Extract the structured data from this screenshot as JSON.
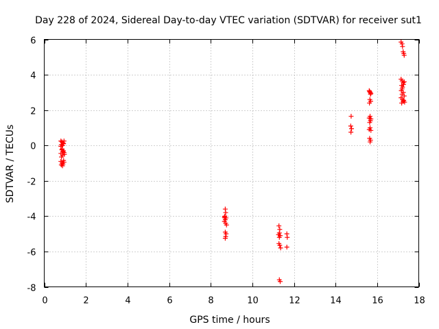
{
  "chart_data": {
    "type": "scatter",
    "title": "Day 228 of 2024, Sidereal Day-to-day VTEC variation (SDTVAR) for receiver sut1",
    "xlabel": "GPS time / hours",
    "ylabel": "SDTVAR / TECUs",
    "xlim": [
      0,
      18
    ],
    "ylim": [
      -8,
      6
    ],
    "xticks": [
      0,
      2,
      4,
      6,
      8,
      10,
      12,
      14,
      16,
      18
    ],
    "yticks": [
      -8,
      -6,
      -4,
      -2,
      0,
      2,
      4,
      6
    ],
    "xtick_labels": [
      "0",
      "2",
      "4",
      "6",
      "8",
      "10",
      "12",
      "14",
      "16",
      "18"
    ],
    "ytick_labels": [
      "-8",
      "-6",
      "-4",
      "-2",
      "0",
      "2",
      "4",
      "6"
    ],
    "grid": true,
    "marker": "+",
    "marker_color": "#ff0000",
    "series": [
      {
        "name": "SDTVAR",
        "points": [
          [
            0.8,
            0.25
          ],
          [
            0.85,
            0.2
          ],
          [
            0.9,
            0.15
          ],
          [
            0.95,
            0.25
          ],
          [
            0.82,
            0.05
          ],
          [
            0.88,
            0.0
          ],
          [
            0.93,
            0.1
          ],
          [
            0.8,
            -0.05
          ],
          [
            0.85,
            -0.25
          ],
          [
            0.9,
            -0.35
          ],
          [
            0.95,
            -0.4
          ],
          [
            0.8,
            -0.45
          ],
          [
            0.88,
            -0.55
          ],
          [
            0.92,
            -0.3
          ],
          [
            0.97,
            -0.5
          ],
          [
            0.83,
            -0.65
          ],
          [
            0.8,
            -0.9
          ],
          [
            0.85,
            -1.0
          ],
          [
            0.9,
            -1.05
          ],
          [
            0.95,
            -0.95
          ],
          [
            0.82,
            -1.1
          ],
          [
            0.88,
            -1.15
          ],
          [
            0.93,
            -0.85
          ],
          [
            0.86,
            -0.2
          ],
          [
            8.7,
            -3.6
          ],
          [
            8.72,
            -3.8
          ],
          [
            8.68,
            -4.0
          ],
          [
            8.74,
            -4.1
          ],
          [
            8.7,
            -4.2
          ],
          [
            8.66,
            -4.3
          ],
          [
            8.72,
            -4.4
          ],
          [
            8.76,
            -4.5
          ],
          [
            8.68,
            -4.1
          ],
          [
            8.7,
            -4.9
          ],
          [
            8.74,
            -5.0
          ],
          [
            8.72,
            -5.15
          ],
          [
            8.7,
            -5.25
          ],
          [
            8.66,
            -4.05
          ],
          [
            11.28,
            -4.55
          ],
          [
            11.32,
            -4.75
          ],
          [
            11.3,
            -4.95
          ],
          [
            11.26,
            -5.05
          ],
          [
            11.34,
            -5.1
          ],
          [
            11.3,
            -5.2
          ],
          [
            11.66,
            -5.0
          ],
          [
            11.68,
            -5.2
          ],
          [
            11.28,
            -5.55
          ],
          [
            11.32,
            -5.65
          ],
          [
            11.36,
            -5.8
          ],
          [
            11.66,
            -5.75
          ],
          [
            11.3,
            -7.6
          ],
          [
            11.34,
            -7.7
          ],
          [
            14.75,
            1.65
          ],
          [
            14.73,
            1.1
          ],
          [
            14.77,
            0.95
          ],
          [
            14.74,
            0.75
          ],
          [
            15.62,
            3.1
          ],
          [
            15.66,
            3.0
          ],
          [
            15.7,
            2.95
          ],
          [
            15.64,
            3.05
          ],
          [
            15.68,
            2.9
          ],
          [
            15.65,
            2.6
          ],
          [
            15.69,
            2.5
          ],
          [
            15.63,
            2.4
          ],
          [
            15.66,
            1.65
          ],
          [
            15.62,
            1.55
          ],
          [
            15.7,
            1.5
          ],
          [
            15.68,
            1.4
          ],
          [
            15.64,
            1.3
          ],
          [
            15.66,
            1.0
          ],
          [
            15.62,
            0.9
          ],
          [
            15.7,
            0.85
          ],
          [
            15.64,
            0.4
          ],
          [
            15.68,
            0.3
          ],
          [
            15.66,
            0.2
          ],
          [
            17.15,
            5.85
          ],
          [
            17.2,
            5.75
          ],
          [
            17.22,
            5.6
          ],
          [
            17.25,
            5.3
          ],
          [
            17.28,
            5.2
          ],
          [
            17.3,
            5.1
          ],
          [
            17.15,
            3.75
          ],
          [
            17.2,
            3.65
          ],
          [
            17.25,
            3.55
          ],
          [
            17.3,
            3.6
          ],
          [
            17.18,
            3.4
          ],
          [
            17.22,
            3.3
          ],
          [
            17.16,
            3.1
          ],
          [
            17.26,
            3.0
          ],
          [
            17.2,
            2.9
          ],
          [
            17.3,
            2.8
          ],
          [
            17.15,
            2.7
          ],
          [
            17.22,
            2.6
          ],
          [
            17.28,
            2.55
          ],
          [
            17.32,
            2.45
          ],
          [
            17.18,
            2.4
          ],
          [
            17.25,
            2.5
          ],
          [
            17.2,
            3.2
          ],
          [
            17.27,
            3.45
          ]
        ]
      }
    ]
  }
}
